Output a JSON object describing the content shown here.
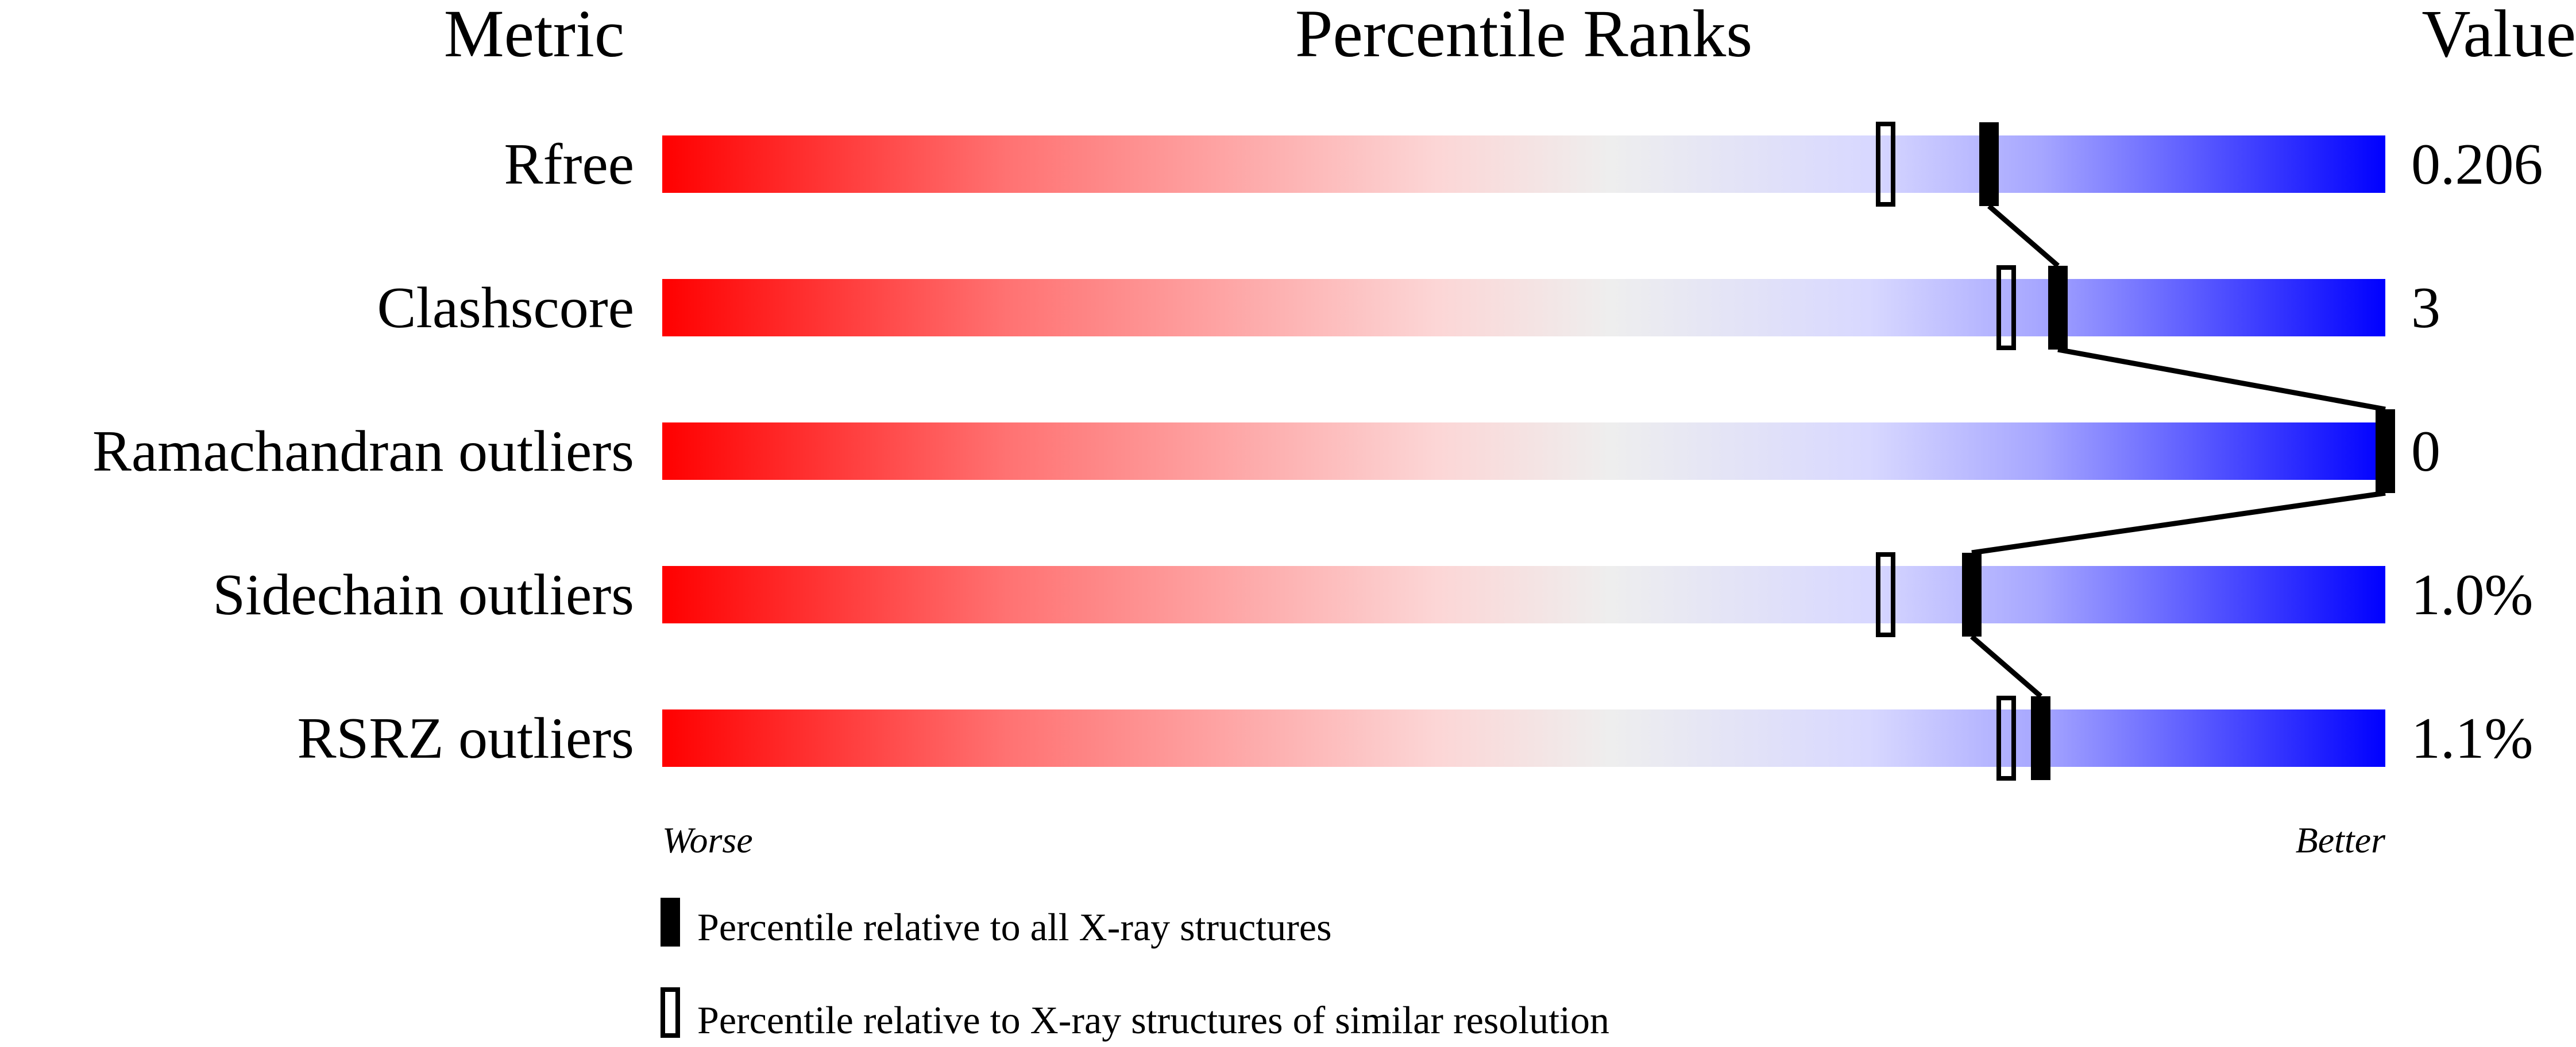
{
  "chart_data": {
    "type": "bar",
    "headers": {
      "metric": "Metric",
      "ranks": "Percentile Ranks",
      "value": "Value"
    },
    "categories": [
      "Rfree",
      "Clashscore",
      "Ramachandran outliers",
      "Sidechain outliers",
      "RSRZ outliers"
    ],
    "values": [
      "0.206",
      "3",
      "0",
      "1.0%",
      "1.1%"
    ],
    "series": [
      {
        "name": "Percentile relative to all X-ray structures",
        "style": "filled",
        "values": [
          77,
          81,
          100,
          76,
          80
        ]
      },
      {
        "name": "Percentile relative to X-ray structures of similar resolution",
        "style": "open",
        "values": [
          71,
          78,
          null,
          71,
          78
        ]
      }
    ],
    "xlim": [
      0,
      100
    ],
    "axis_labels": {
      "left": "Worse",
      "right": "Better"
    },
    "gradient_colors": [
      "#ff0000",
      "#ff7272",
      "#fcd6d6",
      "#eeeeee",
      "#d8d8ff",
      "#a6a6ff",
      "#0000ff"
    ],
    "legend_placement": "bottom-left"
  }
}
